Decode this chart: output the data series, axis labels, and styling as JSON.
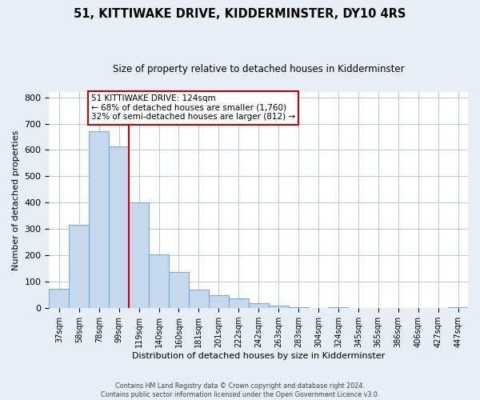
{
  "title": "51, KITTIWAKE DRIVE, KIDDERMINSTER, DY10 4RS",
  "subtitle": "Size of property relative to detached houses in Kidderminster",
  "xlabel": "Distribution of detached houses by size in Kidderminster",
  "ylabel": "Number of detached properties",
  "bar_labels": [
    "37sqm",
    "58sqm",
    "78sqm",
    "99sqm",
    "119sqm",
    "140sqm",
    "160sqm",
    "181sqm",
    "201sqm",
    "222sqm",
    "242sqm",
    "263sqm",
    "283sqm",
    "304sqm",
    "324sqm",
    "345sqm",
    "365sqm",
    "386sqm",
    "406sqm",
    "427sqm",
    "447sqm"
  ],
  "bar_values": [
    75,
    315,
    670,
    615,
    400,
    205,
    138,
    70,
    48,
    38,
    20,
    10,
    5,
    2,
    5,
    1,
    0,
    0,
    0,
    0,
    5
  ],
  "bar_color": "#c5d8ee",
  "bar_edge_color": "#7aadd4",
  "vline_x": 4,
  "vline_color": "#cc0000",
  "annotation_title": "51 KITTIWAKE DRIVE: 124sqm",
  "annotation_line1": "← 68% of detached houses are smaller (1,760)",
  "annotation_line2": "32% of semi-detached houses are larger (812) →",
  "annotation_box_color": "#ffffff",
  "annotation_box_edge": "#cc0000",
  "ylim": [
    0,
    820
  ],
  "yticks": [
    0,
    100,
    200,
    300,
    400,
    500,
    600,
    700,
    800
  ],
  "footer1": "Contains HM Land Registry data © Crown copyright and database right 2024.",
  "footer2": "Contains public sector information licensed under the Open Government Licence v3.0.",
  "bg_color": "#e8eef5",
  "plot_bg_color": "#ffffff",
  "grid_color": "#b8c8d8"
}
